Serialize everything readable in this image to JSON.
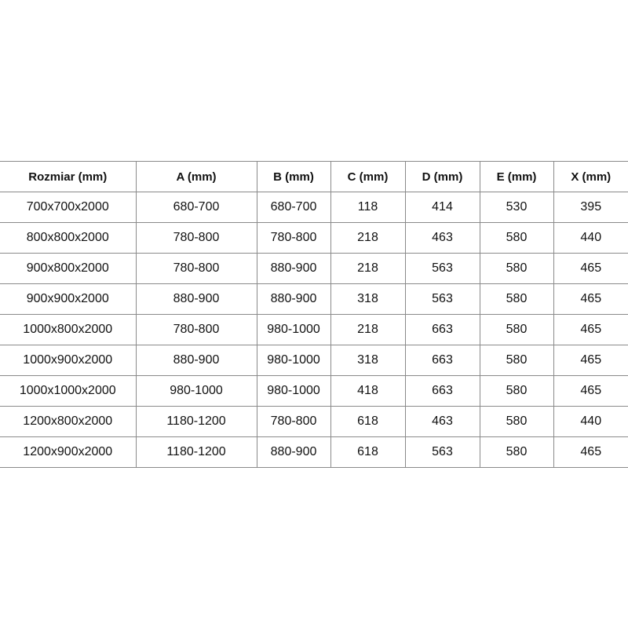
{
  "table": {
    "header": [
      "Rozmiar (mm)",
      "A (mm)",
      "B (mm)",
      "C (mm)",
      "D (mm)",
      "E (mm)",
      "X (mm)"
    ],
    "rows": [
      [
        "700x700x2000",
        "680-700",
        "680-700",
        "118",
        "414",
        "530",
        "395"
      ],
      [
        "800x800x2000",
        "780-800",
        "780-800",
        "218",
        "463",
        "580",
        "440"
      ],
      [
        "900x800x2000",
        "780-800",
        "880-900",
        "218",
        "563",
        "580",
        "465"
      ],
      [
        "900x900x2000",
        "880-900",
        "880-900",
        "318",
        "563",
        "580",
        "465"
      ],
      [
        "1000x800x2000",
        "780-800",
        "980-1000",
        "218",
        "663",
        "580",
        "465"
      ],
      [
        "1000x900x2000",
        "880-900",
        "980-1000",
        "318",
        "663",
        "580",
        "465"
      ],
      [
        "1000x1000x2000",
        "980-1000",
        "980-1000",
        "418",
        "663",
        "580",
        "465"
      ],
      [
        "1200x800x2000",
        "1180-1200",
        "780-800",
        "618",
        "463",
        "580",
        "440"
      ],
      [
        "1200x900x2000",
        "1180-1200",
        "880-900",
        "618",
        "563",
        "580",
        "465"
      ]
    ]
  }
}
